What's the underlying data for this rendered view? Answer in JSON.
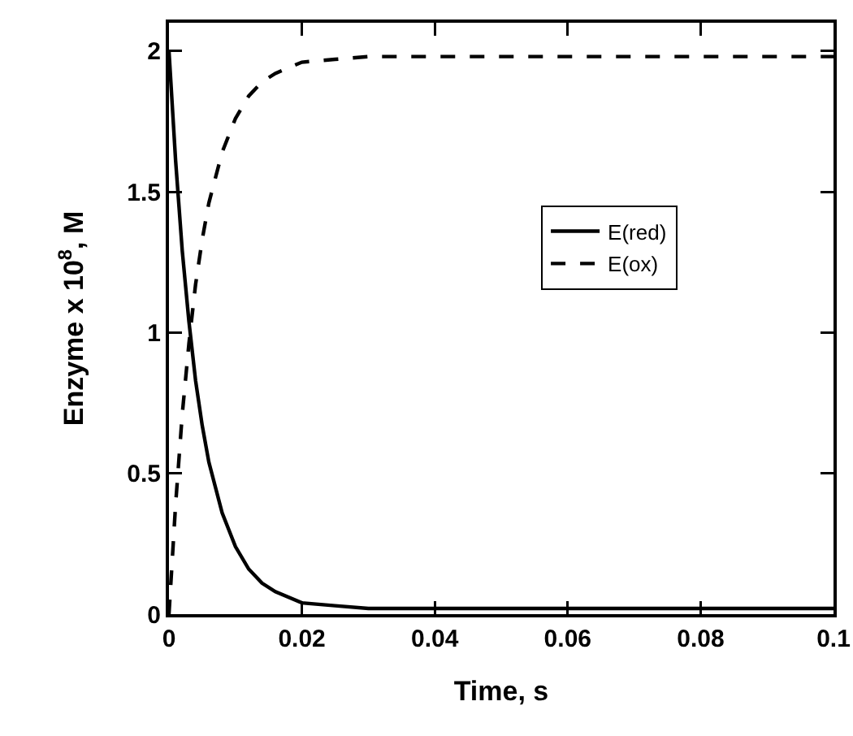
{
  "chart_data": {
    "type": "line",
    "xlabel": "Time, s",
    "ylabel": "Enzyme x 10$^{8}$, M",
    "x": [
      0,
      0.001,
      0.002,
      0.003,
      0.004,
      0.005,
      0.006,
      0.008,
      0.01,
      0.012,
      0.014,
      0.016,
      0.02,
      0.025,
      0.03,
      0.04,
      0.06,
      0.08,
      0.1
    ],
    "series": [
      {
        "name": "E(red)",
        "color": "#000000",
        "line_style": "solid",
        "values": [
          2.0,
          1.61,
          1.29,
          1.04,
          0.83,
          0.67,
          0.54,
          0.36,
          0.24,
          0.16,
          0.11,
          0.08,
          0.04,
          0.03,
          0.02,
          0.02,
          0.02,
          0.02,
          0.02
        ]
      },
      {
        "name": "E(ox)",
        "color": "#000000",
        "line_style": "dashed",
        "values": [
          0,
          0.39,
          0.71,
          0.96,
          1.17,
          1.33,
          1.46,
          1.64,
          1.76,
          1.84,
          1.89,
          1.92,
          1.96,
          1.97,
          1.98,
          1.98,
          1.98,
          1.98,
          1.98
        ]
      }
    ],
    "xlim": [
      0,
      0.1
    ],
    "xticks": [
      0,
      0.02,
      0.04,
      0.06,
      0.08,
      0.1
    ],
    "ylim": [
      0,
      2.1
    ],
    "yticks": [
      0,
      0.5,
      1,
      1.5,
      2
    ],
    "grid": false,
    "legend": "right",
    "marker": "none"
  }
}
